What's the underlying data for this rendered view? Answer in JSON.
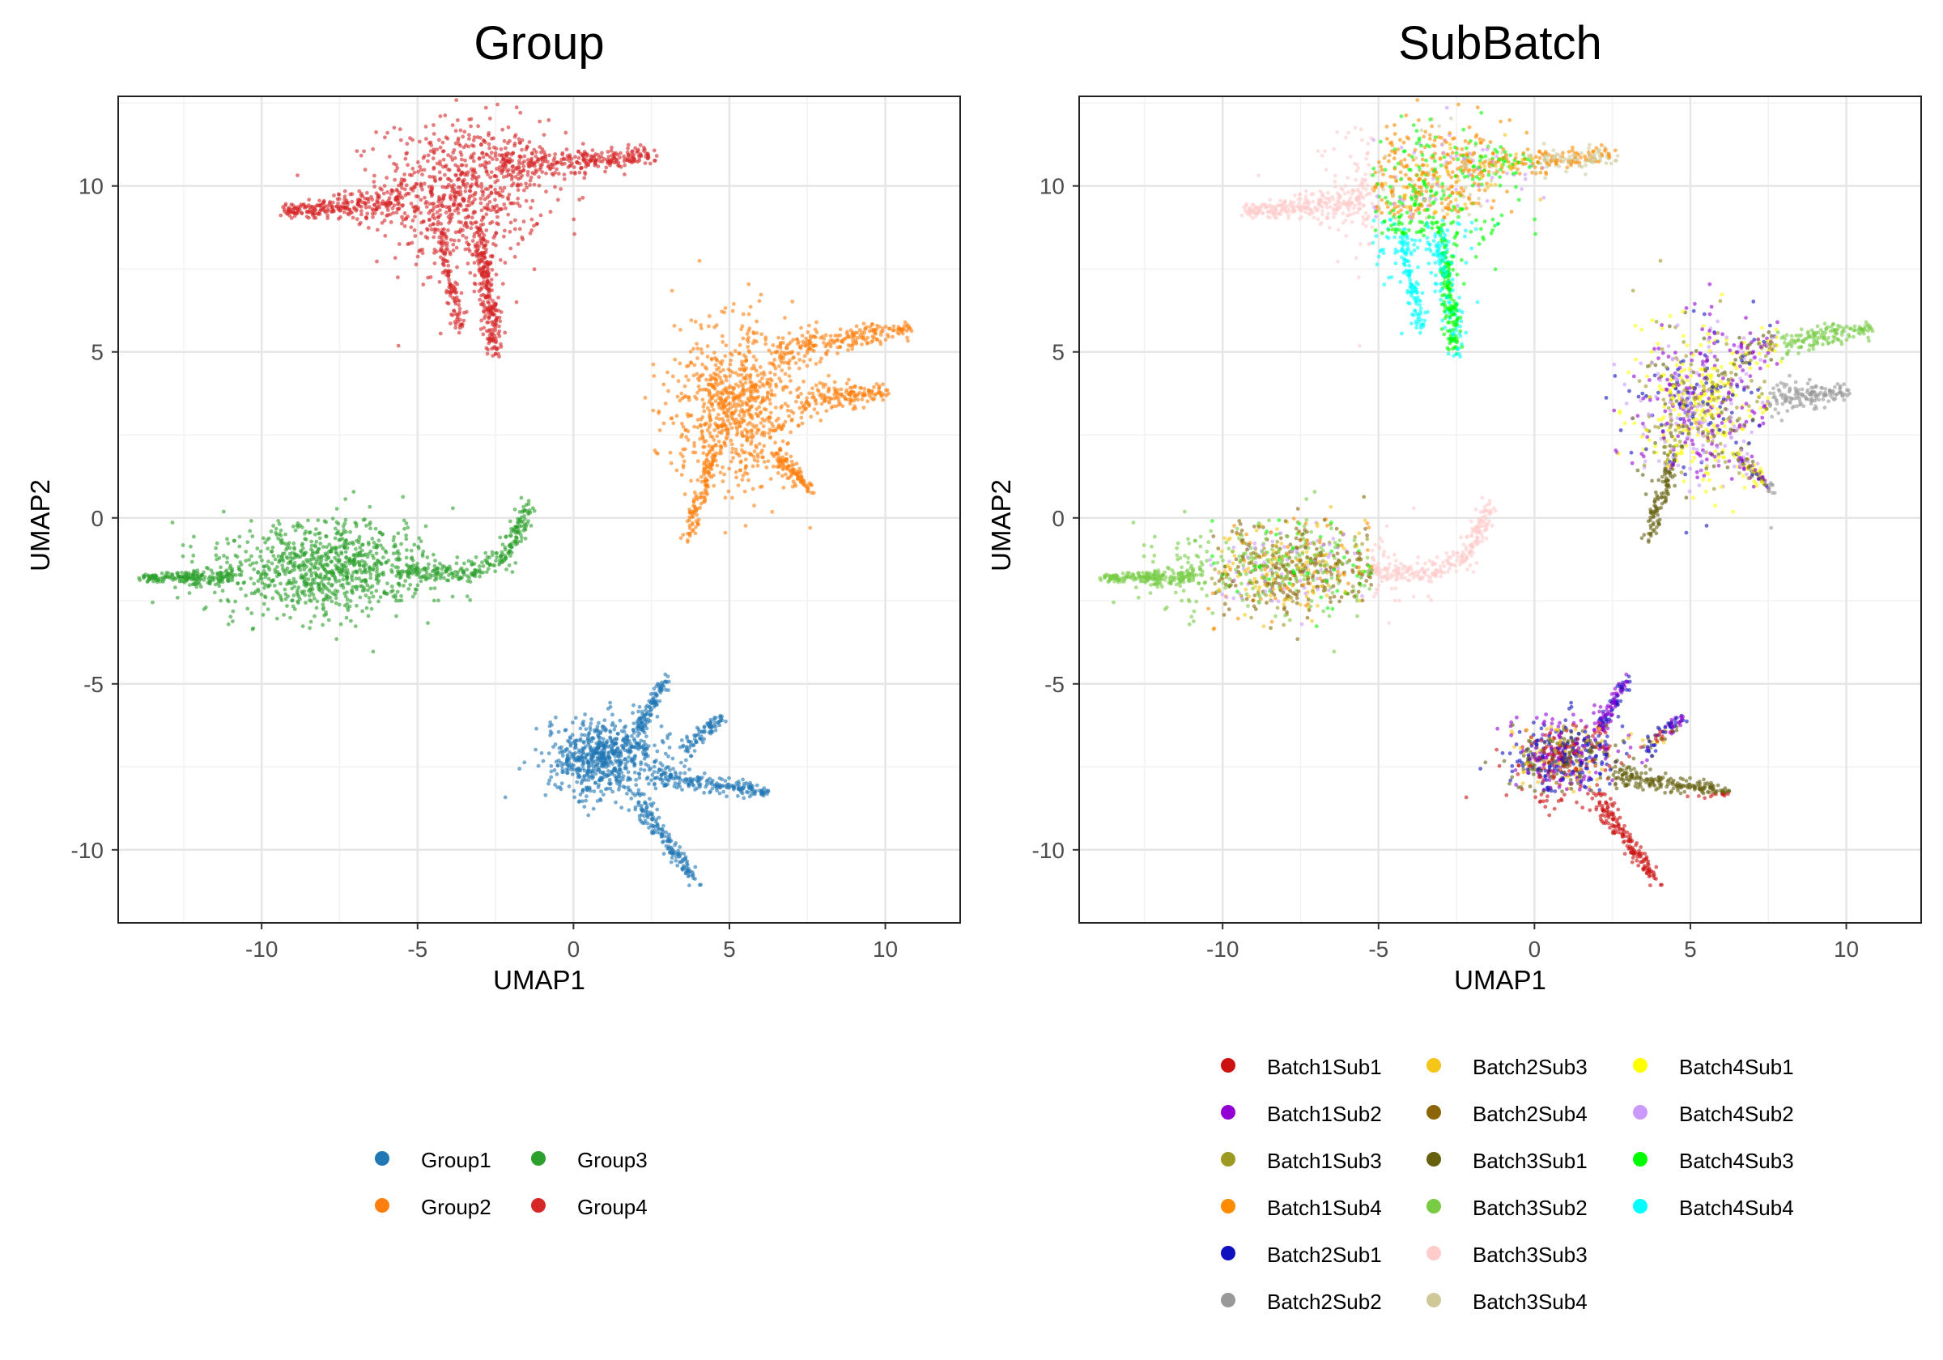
{
  "chart_data": [
    {
      "type": "scatter",
      "title": "Group",
      "xlabel": "UMAP1",
      "ylabel": "UMAP2",
      "xlim": [
        -14.6,
        12.4
      ],
      "ylim": [
        -12.2,
        12.7
      ],
      "xticks": [
        -10,
        -5,
        0,
        5,
        10
      ],
      "yticks": [
        -10,
        -5,
        0,
        5,
        10
      ],
      "grid": true,
      "legend_position": "bottom",
      "series": [
        {
          "name": "Group1",
          "color": "#1f77b4"
        },
        {
          "name": "Group2",
          "color": "#ff7f0e"
        },
        {
          "name": "Group3",
          "color": "#2ca02c"
        },
        {
          "name": "Group4",
          "color": "#d62728"
        }
      ],
      "clusters": [
        {
          "series": "Group4",
          "center": [
            -4.0,
            9.3
          ],
          "shape": "wing: main body x -6 to -1, y 7.5 to 11.5; left arm to x -9.3 at y 9.2; right arm to x 2.5 at y 10.9; tail to y 4.9 near x -2.5"
        },
        {
          "series": "Group2",
          "center": [
            5.5,
            3.2
          ],
          "shape": "body x 3.6 to 8, y 0.5 to 6; arm to x 10.8 at y 5.7; tail to y -0.7 at x 3.6"
        },
        {
          "series": "Group3",
          "center": [
            -8.0,
            -1.5
          ],
          "shape": "body x -12 to -4, y -3.5 to 0.2; tail to x -13.8 at y -1.8; arm curving to x -1.4 at y 0.4"
        },
        {
          "series": "Group1",
          "center": [
            1.5,
            -7.2
          ],
          "shape": "arrow x -1.5 to 6.3, y -10.9 to -4.8; tip at x 6.3, y -8.3"
        }
      ]
    },
    {
      "type": "scatter",
      "title": "SubBatch",
      "xlabel": "UMAP1",
      "ylabel": "UMAP2",
      "xlim": [
        -14.6,
        12.4
      ],
      "ylim": [
        -12.2,
        12.7
      ],
      "xticks": [
        -10,
        -5,
        0,
        5,
        10
      ],
      "yticks": [
        -10,
        -5,
        0,
        5,
        10
      ],
      "grid": true,
      "legend_position": "bottom",
      "series": [
        {
          "name": "Batch1Sub1",
          "color": "#cc1111"
        },
        {
          "name": "Batch1Sub2",
          "color": "#9400d3"
        },
        {
          "name": "Batch1Sub3",
          "color": "#9c9a22"
        },
        {
          "name": "Batch1Sub4",
          "color": "#ff8c00"
        },
        {
          "name": "Batch2Sub1",
          "color": "#1010c0"
        },
        {
          "name": "Batch2Sub2",
          "color": "#999999"
        },
        {
          "name": "Batch2Sub3",
          "color": "#f5c518"
        },
        {
          "name": "Batch2Sub4",
          "color": "#8b6508"
        },
        {
          "name": "Batch3Sub1",
          "color": "#66600f"
        },
        {
          "name": "Batch3Sub2",
          "color": "#77cc44"
        },
        {
          "name": "Batch3Sub3",
          "color": "#ffcccc"
        },
        {
          "name": "Batch3Sub4",
          "color": "#cfc99a"
        },
        {
          "name": "Batch4Sub1",
          "color": "#ffff00"
        },
        {
          "name": "Batch4Sub2",
          "color": "#cc99ff"
        },
        {
          "name": "Batch4Sub3",
          "color": "#00ff00"
        },
        {
          "name": "Batch4Sub4",
          "color": "#00ffff"
        }
      ]
    }
  ],
  "legend_group": [
    "Group1",
    "Group2",
    "Group3",
    "Group4"
  ],
  "legend_subbatch": [
    "Batch1Sub1",
    "Batch1Sub2",
    "Batch1Sub3",
    "Batch1Sub4",
    "Batch2Sub1",
    "Batch2Sub2",
    "Batch2Sub3",
    "Batch2Sub4",
    "Batch3Sub1",
    "Batch3Sub2",
    "Batch3Sub3",
    "Batch3Sub4",
    "Batch4Sub1",
    "Batch4Sub2",
    "Batch4Sub3",
    "Batch4Sub4"
  ]
}
